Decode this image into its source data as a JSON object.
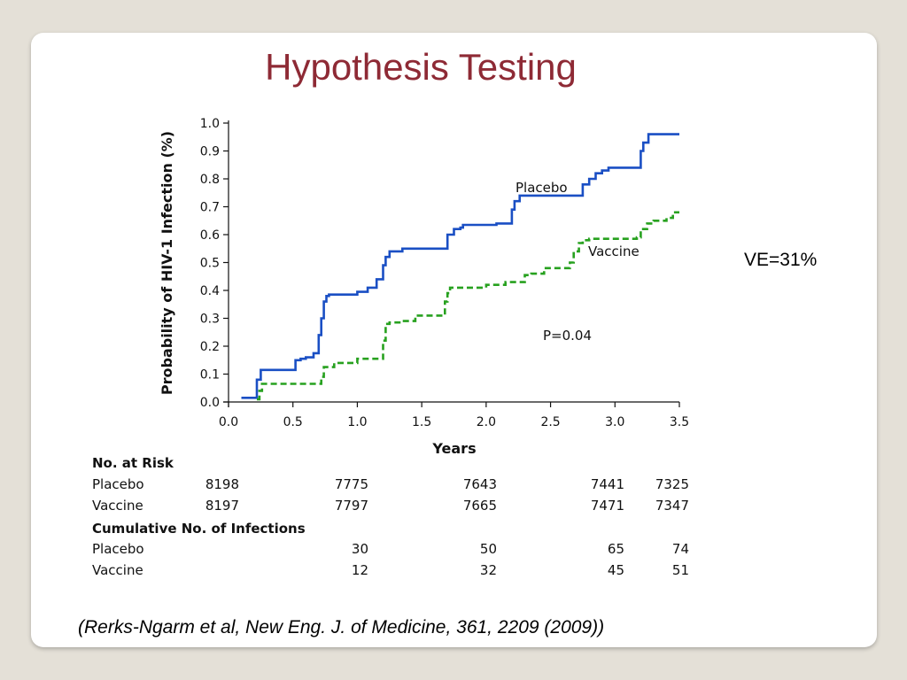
{
  "slide": {
    "title": "Hypothesis Testing",
    "ve_label": "VE=31%",
    "citation": "(Rerks-Ngarm et al, New Eng. J. of Medicine, 361, 2209 (2009))"
  },
  "colors": {
    "title": "#8e2a35",
    "placebo": "#1a4fc4",
    "vaccine": "#27a11f",
    "background": "#e4e0d7"
  },
  "chart_data": {
    "type": "line",
    "xlabel": "Years",
    "ylabel": "Probability of HIV-1 Infection (%)",
    "xlim": [
      0.0,
      3.5
    ],
    "ylim": [
      0.0,
      1.0
    ],
    "xticks": [
      "0.0",
      "0.5",
      "1.0",
      "1.5",
      "2.0",
      "2.5",
      "3.0",
      "3.5"
    ],
    "yticks": [
      "0.0",
      "0.1",
      "0.2",
      "0.3",
      "0.4",
      "0.5",
      "0.6",
      "0.7",
      "0.8",
      "0.9",
      "1.0"
    ],
    "grid": false,
    "step": true,
    "series": [
      {
        "name": "Placebo",
        "style": "solid",
        "x": [
          0.1,
          0.2,
          0.22,
          0.25,
          0.5,
          0.52,
          0.56,
          0.6,
          0.66,
          0.7,
          0.72,
          0.74,
          0.76,
          0.78,
          0.8,
          1.0,
          1.08,
          1.15,
          1.2,
          1.22,
          1.25,
          1.35,
          1.68,
          1.7,
          1.75,
          1.8,
          1.82,
          2.08,
          2.2,
          2.22,
          2.26,
          2.72,
          2.75,
          2.8,
          2.85,
          2.9,
          2.95,
          3.17,
          3.2,
          3.22,
          3.26,
          3.5
        ],
        "y": [
          0.015,
          0.015,
          0.08,
          0.115,
          0.115,
          0.15,
          0.155,
          0.16,
          0.175,
          0.24,
          0.3,
          0.36,
          0.38,
          0.385,
          0.385,
          0.395,
          0.41,
          0.44,
          0.49,
          0.52,
          0.54,
          0.55,
          0.55,
          0.6,
          0.62,
          0.625,
          0.635,
          0.64,
          0.69,
          0.72,
          0.74,
          0.74,
          0.78,
          0.8,
          0.82,
          0.83,
          0.84,
          0.84,
          0.9,
          0.93,
          0.96,
          0.96
        ]
      },
      {
        "name": "Vaccine",
        "style": "dashed",
        "x": [
          0.22,
          0.24,
          0.26,
          0.5,
          0.7,
          0.72,
          0.74,
          0.82,
          1.0,
          1.19,
          1.2,
          1.22,
          1.25,
          1.3,
          1.35,
          1.45,
          1.5,
          1.55,
          1.68,
          1.7,
          1.72,
          1.75,
          1.9,
          2.0,
          2.15,
          2.3,
          2.35,
          2.45,
          2.5,
          2.65,
          2.68,
          2.72,
          2.75,
          2.8,
          3.17,
          3.2,
          3.25,
          3.3,
          3.4,
          3.45,
          3.5
        ],
        "y": [
          0.01,
          0.04,
          0.065,
          0.065,
          0.065,
          0.09,
          0.125,
          0.14,
          0.155,
          0.155,
          0.22,
          0.28,
          0.285,
          0.285,
          0.29,
          0.31,
          0.31,
          0.31,
          0.36,
          0.39,
          0.41,
          0.41,
          0.41,
          0.42,
          0.43,
          0.455,
          0.46,
          0.48,
          0.48,
          0.5,
          0.54,
          0.57,
          0.58,
          0.585,
          0.59,
          0.62,
          0.64,
          0.65,
          0.66,
          0.68,
          0.68
        ]
      }
    ],
    "annotations": [
      "Placebo",
      "Vaccine",
      "P=0.04"
    ],
    "risk_table": {
      "at_risk_header": "No. at Risk",
      "infections_header": "Cumulative No. of Infections",
      "at_risk": [
        {
          "group": "Placebo",
          "values": [
            "8198",
            "7775",
            "7643",
            "7441",
            "7325"
          ]
        },
        {
          "group": "Vaccine",
          "values": [
            "8197",
            "7797",
            "7665",
            "7471",
            "7347"
          ]
        }
      ],
      "infections": [
        {
          "group": "Placebo",
          "values": [
            "30",
            "50",
            "65",
            "74"
          ]
        },
        {
          "group": "Vaccine",
          "values": [
            "12",
            "32",
            "45",
            "51"
          ]
        }
      ]
    }
  }
}
